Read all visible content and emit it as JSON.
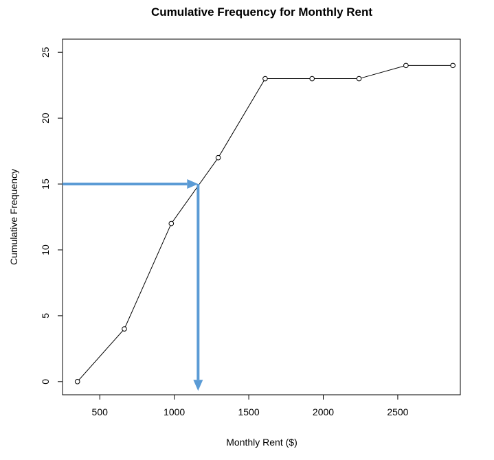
{
  "chart_data": {
    "type": "line",
    "title": "Cumulative Frequency for Monthly Rent",
    "xlabel": "Monthly Rent ($)",
    "ylabel": "Cumulative Frequency",
    "xlim": [
      250,
      2920
    ],
    "ylim": [
      -1,
      26
    ],
    "x_ticks": [
      500,
      1000,
      1500,
      2000,
      2500
    ],
    "y_ticks": [
      0,
      5,
      10,
      15,
      20,
      25
    ],
    "grid": false,
    "series": [
      {
        "x": [
          350,
          665,
          980,
          1295,
          1610,
          1925,
          2240,
          2555,
          2870
        ],
        "y": [
          0,
          4,
          12,
          17,
          23,
          23,
          23,
          24,
          24
        ]
      }
    ],
    "annotations": [
      {
        "type": "arrow_path",
        "color": "#5b9bd5",
        "points": [
          [
            250,
            15
          ],
          [
            1160,
            15
          ],
          [
            1160,
            -0.7
          ]
        ]
      }
    ]
  }
}
